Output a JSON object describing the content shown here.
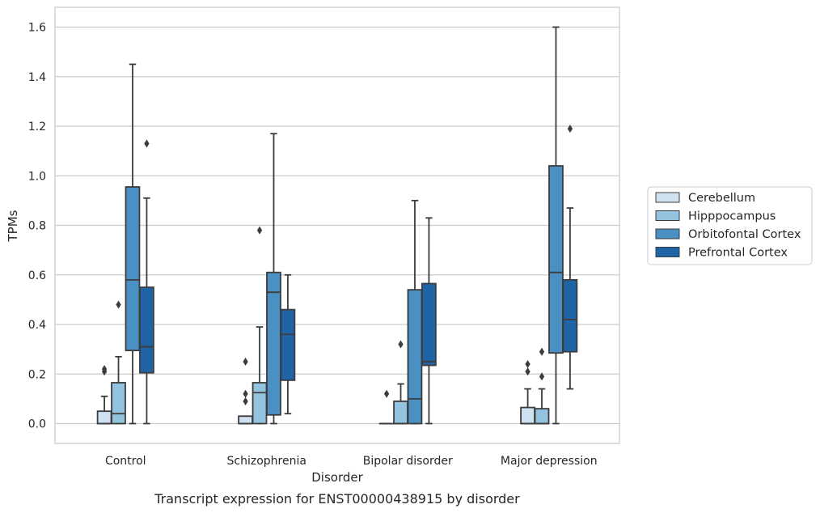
{
  "chart_data": {
    "type": "box",
    "caption": "Transcript expression for ENST00000438915 by disorder",
    "xlabel": "Disorder",
    "ylabel": "TPMs",
    "ylim": [
      -0.08,
      1.68
    ],
    "yticks": [
      "0.0",
      "0.2",
      "0.4",
      "0.6",
      "0.8",
      "1.0",
      "1.2",
      "1.4",
      "1.6"
    ],
    "grid": "horizontal",
    "legend_position": "right",
    "categories": [
      "Control",
      "Schizophrenia",
      "Bipolar disorder",
      "Major depression"
    ],
    "series": [
      {
        "name": "Cerebellum",
        "color": "#d0e1f1",
        "boxes": [
          {
            "q1": 0.0,
            "median": 0.0,
            "q3": 0.05,
            "whisker_low": 0.0,
            "whisker_high": 0.11,
            "outliers": [
              0.21,
              0.22
            ]
          },
          {
            "q1": 0.0,
            "median": 0.0,
            "q3": 0.03,
            "whisker_low": 0.0,
            "whisker_high": 0.03,
            "outliers": [
              0.09,
              0.12,
              0.25
            ]
          },
          {
            "q1": 0.0,
            "median": 0.0,
            "q3": 0.0,
            "whisker_low": 0.0,
            "whisker_high": 0.0,
            "outliers": [
              0.12
            ]
          },
          {
            "q1": 0.0,
            "median": 0.0,
            "q3": 0.065,
            "whisker_low": 0.0,
            "whisker_high": 0.14,
            "outliers": [
              0.21,
              0.24
            ]
          }
        ]
      },
      {
        "name": "Hipppocampus",
        "color": "#93c3df",
        "boxes": [
          {
            "q1": 0.0,
            "median": 0.04,
            "q3": 0.165,
            "whisker_low": 0.0,
            "whisker_high": 0.27,
            "outliers": [
              0.48
            ]
          },
          {
            "q1": 0.0,
            "median": 0.125,
            "q3": 0.165,
            "whisker_low": 0.0,
            "whisker_high": 0.39,
            "outliers": [
              0.78
            ]
          },
          {
            "q1": 0.0,
            "median": 0.0,
            "q3": 0.09,
            "whisker_low": 0.0,
            "whisker_high": 0.16,
            "outliers": [
              0.32
            ]
          },
          {
            "q1": 0.0,
            "median": 0.0,
            "q3": 0.06,
            "whisker_low": 0.0,
            "whisker_high": 0.14,
            "outliers": [
              0.19,
              0.29
            ]
          }
        ]
      },
      {
        "name": "Orbitofontal Cortex",
        "color": "#4a90c2",
        "boxes": [
          {
            "q1": 0.295,
            "median": 0.58,
            "q3": 0.955,
            "whisker_low": 0.0,
            "whisker_high": 1.45,
            "outliers": []
          },
          {
            "q1": 0.035,
            "median": 0.53,
            "q3": 0.61,
            "whisker_low": 0.0,
            "whisker_high": 1.17,
            "outliers": []
          },
          {
            "q1": 0.0,
            "median": 0.1,
            "q3": 0.54,
            "whisker_low": 0.0,
            "whisker_high": 0.9,
            "outliers": []
          },
          {
            "q1": 0.285,
            "median": 0.61,
            "q3": 1.04,
            "whisker_low": 0.0,
            "whisker_high": 1.6,
            "outliers": []
          }
        ]
      },
      {
        "name": "Prefrontal Cortex",
        "color": "#2064a8",
        "boxes": [
          {
            "q1": 0.205,
            "median": 0.31,
            "q3": 0.55,
            "whisker_low": 0.0,
            "whisker_high": 0.91,
            "outliers": [
              1.13
            ]
          },
          {
            "q1": 0.175,
            "median": 0.36,
            "q3": 0.46,
            "whisker_low": 0.04,
            "whisker_high": 0.6,
            "outliers": []
          },
          {
            "q1": 0.235,
            "median": 0.25,
            "q3": 0.565,
            "whisker_low": 0.0,
            "whisker_high": 0.83,
            "outliers": []
          },
          {
            "q1": 0.29,
            "median": 0.42,
            "q3": 0.58,
            "whisker_low": 0.14,
            "whisker_high": 0.87,
            "outliers": [
              1.19
            ]
          }
        ]
      }
    ]
  }
}
